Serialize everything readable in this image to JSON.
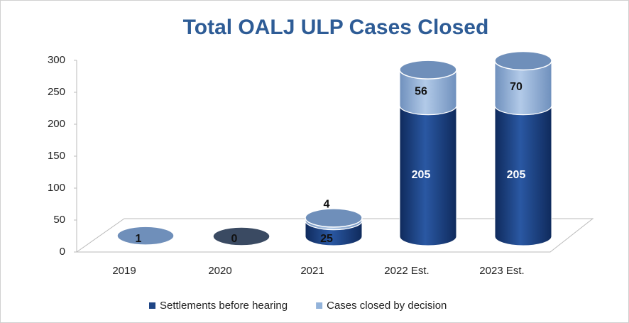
{
  "chart_data": {
    "type": "bar3d_stacked",
    "title": "Total  OALJ ULP Cases Closed",
    "categories": [
      "2019",
      "2020",
      "2021",
      "2022 Est.",
      "2023 Est."
    ],
    "series": [
      {
        "name": "Settlements before hearing",
        "color": "#1f4585",
        "values": [
          1,
          0,
          25,
          205,
          205
        ]
      },
      {
        "name": "Cases closed by decision",
        "color": "#93b3da",
        "values": [
          null,
          null,
          4,
          56,
          70
        ]
      }
    ],
    "ylim": [
      0,
      300
    ],
    "yticks": [
      0,
      50,
      100,
      150,
      200,
      250,
      300
    ],
    "grid": false,
    "legend": "bottom"
  }
}
